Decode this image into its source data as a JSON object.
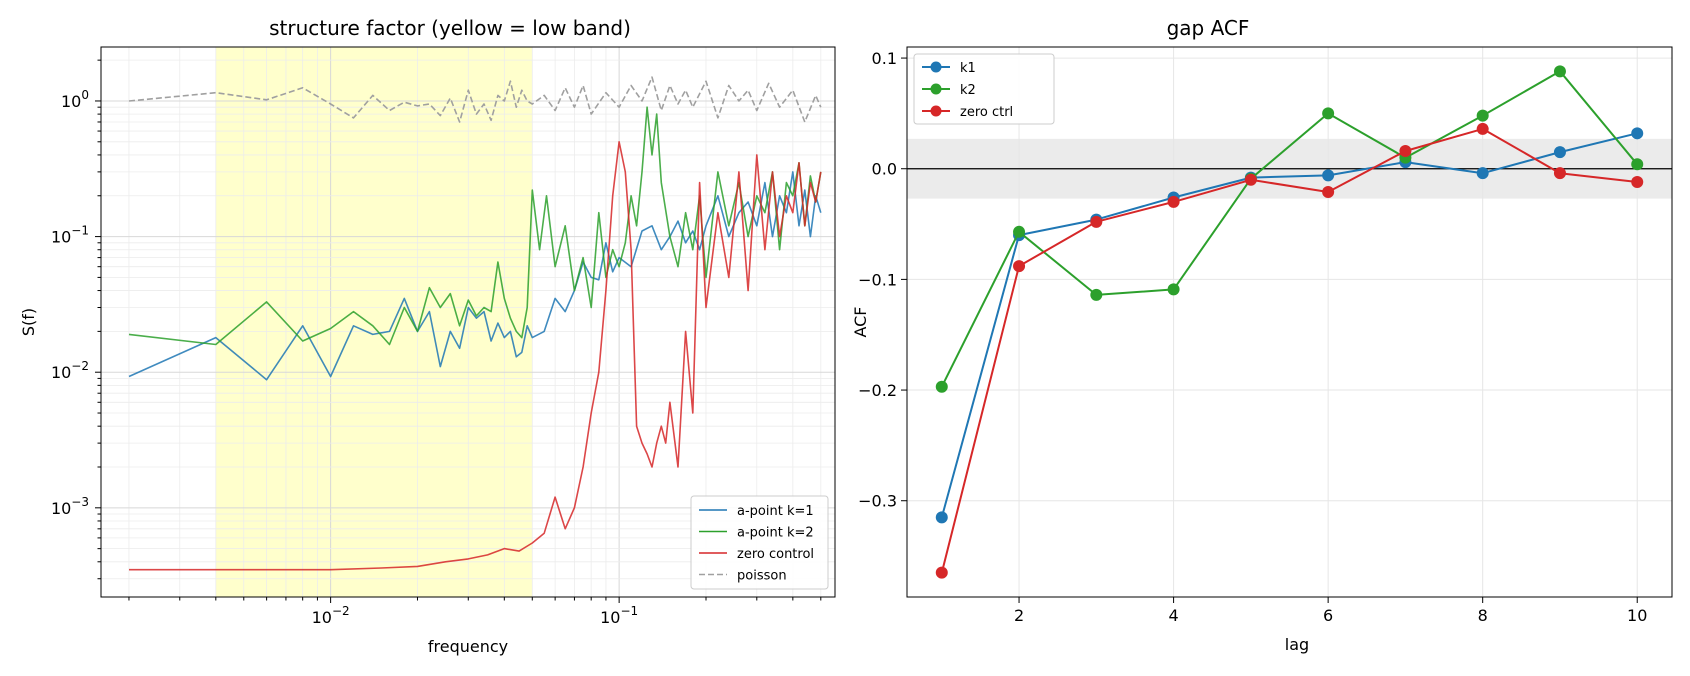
{
  "chart_data": [
    {
      "type": "line",
      "title": "structure factor (yellow = low band)",
      "xlabel": "frequency",
      "ylabel": "S(f)",
      "xscale": "log",
      "yscale": "log",
      "xlim": [
        0.0016,
        0.56
      ],
      "ylim": [
        0.00022,
        2.5
      ],
      "grid": true,
      "legend_position": "lower-right",
      "x_ticks": [
        {
          "value": 0.01,
          "label": "10",
          "exp": "−2"
        },
        {
          "value": 0.1,
          "label": "10",
          "exp": "−1"
        }
      ],
      "y_ticks": [
        {
          "value": 0.001,
          "label": "10",
          "exp": "−3"
        },
        {
          "value": 0.01,
          "label": "10",
          "exp": "−2"
        },
        {
          "value": 0.1,
          "label": "10",
          "exp": "−1"
        },
        {
          "value": 1,
          "label": "10",
          "exp": "0"
        }
      ],
      "band": {
        "x": [
          0.004,
          0.05
        ],
        "color": "#ffffcc"
      },
      "series": [
        {
          "name": "a-point k=1",
          "color": "#1f77b4",
          "style": "solid",
          "x": [
            0.002,
            0.004,
            0.006,
            0.008,
            0.01,
            0.012,
            0.014,
            0.016,
            0.018,
            0.02,
            0.022,
            0.024,
            0.026,
            0.028,
            0.03,
            0.032,
            0.034,
            0.036,
            0.038,
            0.04,
            0.042,
            0.044,
            0.046,
            0.048,
            0.05,
            0.055,
            0.06,
            0.065,
            0.07,
            0.075,
            0.08,
            0.085,
            0.09,
            0.095,
            0.1,
            0.11,
            0.12,
            0.13,
            0.14,
            0.15,
            0.16,
            0.17,
            0.18,
            0.19,
            0.2,
            0.22,
            0.24,
            0.26,
            0.28,
            0.3,
            0.32,
            0.34,
            0.36,
            0.38,
            0.4,
            0.42,
            0.44,
            0.46,
            0.48,
            0.5
          ],
          "y": [
            0.0093,
            0.018,
            0.0088,
            0.022,
            0.0093,
            0.022,
            0.019,
            0.02,
            0.035,
            0.02,
            0.028,
            0.011,
            0.02,
            0.015,
            0.03,
            0.025,
            0.028,
            0.017,
            0.023,
            0.018,
            0.02,
            0.013,
            0.014,
            0.022,
            0.018,
            0.02,
            0.035,
            0.028,
            0.04,
            0.065,
            0.05,
            0.048,
            0.09,
            0.055,
            0.07,
            0.06,
            0.11,
            0.12,
            0.08,
            0.1,
            0.13,
            0.09,
            0.11,
            0.08,
            0.12,
            0.2,
            0.1,
            0.15,
            0.18,
            0.12,
            0.25,
            0.1,
            0.2,
            0.15,
            0.3,
            0.12,
            0.22,
            0.1,
            0.2,
            0.15
          ]
        },
        {
          "name": "a-point k=2",
          "color": "#2ca02c",
          "style": "solid",
          "x": [
            0.002,
            0.004,
            0.006,
            0.008,
            0.01,
            0.012,
            0.014,
            0.016,
            0.018,
            0.02,
            0.022,
            0.024,
            0.026,
            0.028,
            0.03,
            0.032,
            0.034,
            0.036,
            0.038,
            0.04,
            0.042,
            0.044,
            0.046,
            0.048,
            0.05,
            0.053,
            0.056,
            0.06,
            0.065,
            0.07,
            0.075,
            0.08,
            0.085,
            0.09,
            0.095,
            0.1,
            0.105,
            0.11,
            0.115,
            0.12,
            0.125,
            0.13,
            0.135,
            0.14,
            0.15,
            0.16,
            0.17,
            0.18,
            0.19,
            0.2,
            0.22,
            0.24,
            0.26,
            0.28,
            0.3,
            0.32,
            0.34,
            0.36,
            0.38,
            0.4,
            0.42,
            0.44,
            0.46,
            0.48,
            0.5
          ],
          "y": [
            0.019,
            0.016,
            0.033,
            0.017,
            0.021,
            0.028,
            0.022,
            0.016,
            0.03,
            0.02,
            0.042,
            0.03,
            0.038,
            0.022,
            0.034,
            0.026,
            0.03,
            0.028,
            0.065,
            0.035,
            0.025,
            0.02,
            0.018,
            0.03,
            0.22,
            0.08,
            0.2,
            0.06,
            0.12,
            0.04,
            0.07,
            0.03,
            0.15,
            0.05,
            0.08,
            0.06,
            0.09,
            0.2,
            0.12,
            0.3,
            0.9,
            0.4,
            0.8,
            0.25,
            0.1,
            0.06,
            0.15,
            0.08,
            0.2,
            0.05,
            0.3,
            0.12,
            0.25,
            0.1,
            0.2,
            0.15,
            0.3,
            0.08,
            0.25,
            0.2,
            0.35,
            0.12,
            0.28,
            0.18,
            0.3
          ]
        },
        {
          "name": "zero control",
          "color": "#d62728",
          "style": "solid",
          "x": [
            0.002,
            0.005,
            0.01,
            0.015,
            0.02,
            0.025,
            0.03,
            0.035,
            0.04,
            0.045,
            0.05,
            0.055,
            0.06,
            0.065,
            0.07,
            0.075,
            0.08,
            0.085,
            0.09,
            0.095,
            0.1,
            0.105,
            0.11,
            0.115,
            0.12,
            0.125,
            0.13,
            0.135,
            0.14,
            0.145,
            0.15,
            0.16,
            0.17,
            0.18,
            0.19,
            0.2,
            0.22,
            0.24,
            0.26,
            0.28,
            0.3,
            0.32,
            0.34,
            0.36,
            0.38,
            0.4,
            0.42,
            0.44,
            0.46,
            0.48,
            0.5
          ],
          "y": [
            0.00035,
            0.00035,
            0.00035,
            0.00036,
            0.00037,
            0.0004,
            0.00042,
            0.00045,
            0.0005,
            0.00048,
            0.00055,
            0.00065,
            0.0012,
            0.0007,
            0.001,
            0.002,
            0.005,
            0.01,
            0.04,
            0.2,
            0.5,
            0.3,
            0.08,
            0.004,
            0.003,
            0.0025,
            0.002,
            0.003,
            0.004,
            0.003,
            0.006,
            0.002,
            0.02,
            0.005,
            0.25,
            0.03,
            0.15,
            0.05,
            0.3,
            0.04,
            0.4,
            0.08,
            0.3,
            0.1,
            0.2,
            0.15,
            0.35,
            0.12,
            0.25,
            0.18,
            0.3
          ]
        },
        {
          "name": "poisson",
          "color": "#a0a0a0",
          "style": "dashed",
          "x": [
            0.002,
            0.004,
            0.006,
            0.008,
            0.01,
            0.012,
            0.014,
            0.016,
            0.018,
            0.02,
            0.022,
            0.024,
            0.026,
            0.028,
            0.03,
            0.032,
            0.034,
            0.036,
            0.038,
            0.04,
            0.042,
            0.044,
            0.046,
            0.048,
            0.05,
            0.055,
            0.06,
            0.065,
            0.07,
            0.075,
            0.08,
            0.09,
            0.1,
            0.11,
            0.12,
            0.13,
            0.14,
            0.15,
            0.16,
            0.17,
            0.18,
            0.2,
            0.22,
            0.24,
            0.26,
            0.28,
            0.3,
            0.33,
            0.36,
            0.4,
            0.44,
            0.48,
            0.5
          ],
          "y": [
            1.0,
            1.15,
            1.02,
            1.25,
            0.95,
            0.75,
            1.1,
            0.85,
            0.98,
            0.92,
            0.95,
            0.78,
            1.05,
            0.7,
            1.2,
            0.8,
            0.95,
            0.72,
            1.1,
            1.0,
            1.4,
            0.9,
            1.2,
            1.0,
            0.95,
            1.1,
            0.85,
            1.25,
            0.9,
            1.3,
            0.8,
            1.15,
            0.9,
            1.3,
            1.0,
            1.5,
            0.85,
            1.3,
            0.95,
            1.2,
            0.9,
            1.4,
            0.75,
            1.3,
            1.0,
            1.2,
            0.85,
            1.35,
            0.9,
            1.2,
            0.7,
            1.1,
            0.9
          ]
        }
      ]
    },
    {
      "type": "line",
      "title": "gap ACF",
      "xlabel": "lag",
      "ylabel": "ACF",
      "xlim": [
        0.55,
        10.45
      ],
      "ylim": [
        -0.387,
        0.11
      ],
      "grid": true,
      "legend_position": "upper-left",
      "x_ticks": [
        {
          "value": 2,
          "label": "2"
        },
        {
          "value": 4,
          "label": "4"
        },
        {
          "value": 6,
          "label": "6"
        },
        {
          "value": 8,
          "label": "8"
        },
        {
          "value": 10,
          "label": "10"
        }
      ],
      "y_ticks": [
        {
          "value": 0.1,
          "label": "0.1"
        },
        {
          "value": 0.0,
          "label": "0.0"
        },
        {
          "value": -0.1,
          "label": "−0.1"
        },
        {
          "value": -0.2,
          "label": "−0.2"
        },
        {
          "value": -0.3,
          "label": "−0.3"
        }
      ],
      "band": {
        "y": [
          -0.027,
          0.027
        ],
        "color": "#ebebeb"
      },
      "zero_line": 0,
      "x": [
        1,
        2,
        3,
        4,
        5,
        6,
        7,
        8,
        9,
        10
      ],
      "series": [
        {
          "name": "k1",
          "color": "#1f77b4",
          "values": [
            -0.315,
            -0.06,
            -0.046,
            -0.026,
            -0.008,
            -0.006,
            0.006,
            -0.004,
            0.015,
            0.032
          ]
        },
        {
          "name": "k2",
          "color": "#2ca02c",
          "values": [
            -0.197,
            -0.057,
            -0.114,
            -0.109,
            -0.009,
            0.05,
            0.01,
            0.048,
            0.088,
            0.004
          ]
        },
        {
          "name": "zero ctrl",
          "color": "#d62728",
          "values": [
            -0.365,
            -0.088,
            -0.048,
            -0.03,
            -0.01,
            -0.021,
            0.016,
            0.036,
            -0.004,
            -0.012
          ]
        }
      ]
    }
  ]
}
